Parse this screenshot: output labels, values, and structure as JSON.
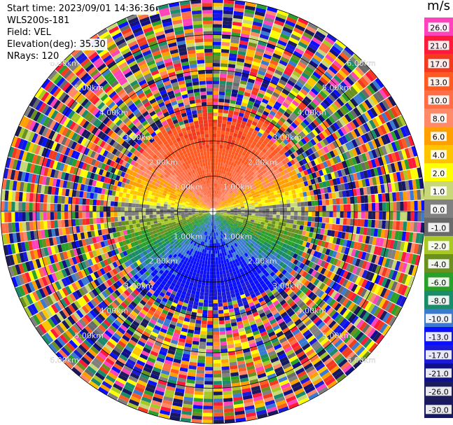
{
  "info": {
    "start_time": "Start time: 2023/09/01 14:36:36",
    "device": "WLS200s-181",
    "field": "Field: VEL",
    "elevation": "Elevation(deg): 35.30",
    "nrays": "NRays: 120"
  },
  "colorbar": {
    "unit": "m/s",
    "entries": [
      {
        "label": "26.0",
        "color": "#ff44bb"
      },
      {
        "label": "21.0",
        "color": "#ff1a3a"
      },
      {
        "label": "17.0",
        "color": "#f23a1e"
      },
      {
        "label": "13.0",
        "color": "#ff5a22"
      },
      {
        "label": "10.0",
        "color": "#ff6e45"
      },
      {
        "label": "8.0",
        "color": "#ff8a6a"
      },
      {
        "label": "6.0",
        "color": "#ffa000"
      },
      {
        "label": "4.0",
        "color": "#ffc400"
      },
      {
        "label": "2.0",
        "color": "#ffff00"
      },
      {
        "label": "1.0",
        "color": "#c8d878"
      },
      {
        "label": "0.0",
        "color": "#808080"
      },
      {
        "label": "-1.0",
        "color": "#6a6a6a"
      },
      {
        "label": "-2.0",
        "color": "#a8c828"
      },
      {
        "label": "-4.0",
        "color": "#6a9020"
      },
      {
        "label": "-6.0",
        "color": "#2aa02a"
      },
      {
        "label": "-8.0",
        "color": "#1a8c6a"
      },
      {
        "label": "-10.0",
        "color": "#3a7ad0"
      },
      {
        "label": "-13.0",
        "color": "#0a10ff"
      },
      {
        "label": "-17.0",
        "color": "#1a1ad8"
      },
      {
        "label": "-21.0",
        "color": "#101088"
      },
      {
        "label": "-26.0",
        "color": "#1c1c5a"
      },
      {
        "label": "-30.0",
        "color": "#181860"
      }
    ]
  },
  "chart_data": {
    "type": "heatmap",
    "projection": "polar-ppi",
    "nrays": 120,
    "max_range_km": 6.0,
    "range_rings_km": [
      1.0,
      2.0,
      3.0,
      4.0,
      5.0,
      6.0
    ],
    "ring_labels": [
      "1.00km",
      "2.00km",
      "3.00km",
      "4.00km",
      "5.00km",
      "6.00km"
    ],
    "clear_signal_range_km": 3.0,
    "color_range": [
      -30.0,
      26.0
    ],
    "pattern": "positive velocities (red/orange) north of the radar, near-zero (yellow/grey) along the east-west axis, negative velocities (green/blue) to the south, noise beyond ~3 km"
  }
}
